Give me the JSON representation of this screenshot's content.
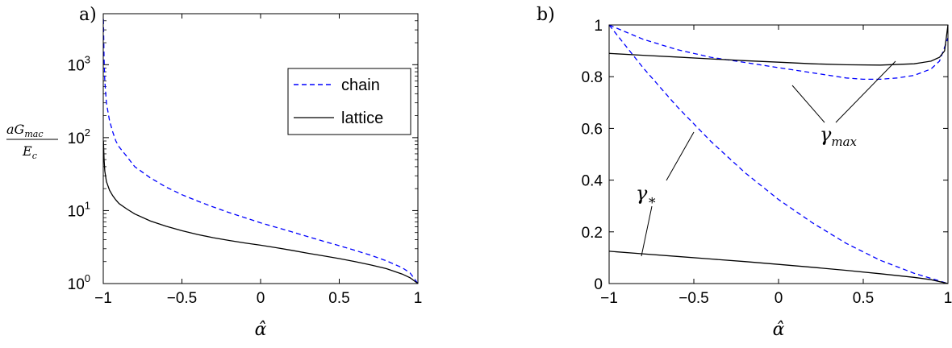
{
  "chart_data": [
    {
      "type": "line",
      "panel_label": "a)",
      "xlabel": "α̂",
      "ylabel_num": "aG",
      "ylabel_num_sub": "mac",
      "ylabel_den": "E",
      "ylabel_den_sub": "c",
      "xlim": [
        -1,
        1
      ],
      "ylim": [
        1,
        5000
      ],
      "yscale": "log",
      "x_ticks": [
        "−1",
        "−0.5",
        "0",
        "0.5",
        "1"
      ],
      "y_ticks": [
        {
          "base": "10",
          "exp": "0"
        },
        {
          "base": "10",
          "exp": "1"
        },
        {
          "base": "10",
          "exp": "2"
        },
        {
          "base": "10",
          "exp": "3"
        }
      ],
      "legend_position": "upper-right",
      "series": [
        {
          "name": "chain",
          "color": "#0000ff",
          "dash": "dashed",
          "x": [
            -0.999,
            -0.995,
            -0.99,
            -0.98,
            -0.96,
            -0.94,
            -0.92,
            -0.9,
            -0.85,
            -0.8,
            -0.7,
            -0.6,
            -0.5,
            -0.4,
            -0.3,
            -0.2,
            -0.1,
            0.0,
            0.1,
            0.2,
            0.3,
            0.4,
            0.5,
            0.6,
            0.7,
            0.8,
            0.9,
            0.95,
            1.0
          ],
          "y": [
            4200,
            1200,
            600,
            300,
            170,
            120,
            90,
            75,
            55,
            40,
            28,
            21,
            16.5,
            13.5,
            11.2,
            9.4,
            8.0,
            6.8,
            5.9,
            5.1,
            4.4,
            3.8,
            3.3,
            2.85,
            2.45,
            2.05,
            1.65,
            1.4,
            1.0
          ]
        },
        {
          "name": "lattice",
          "color": "#000000",
          "dash": "solid",
          "x": [
            -0.999,
            -0.995,
            -0.99,
            -0.98,
            -0.96,
            -0.94,
            -0.92,
            -0.9,
            -0.85,
            -0.8,
            -0.7,
            -0.6,
            -0.5,
            -0.4,
            -0.3,
            -0.2,
            -0.1,
            0.0,
            0.1,
            0.2,
            0.3,
            0.4,
            0.5,
            0.6,
            0.7,
            0.8,
            0.9,
            0.95,
            1.0
          ],
          "y": [
            90,
            50,
            35,
            25,
            19,
            16,
            14,
            12.5,
            10.5,
            9.0,
            7.2,
            6.1,
            5.3,
            4.7,
            4.25,
            3.9,
            3.6,
            3.35,
            3.1,
            2.85,
            2.6,
            2.4,
            2.2,
            2.0,
            1.8,
            1.6,
            1.35,
            1.2,
            1.0
          ]
        }
      ]
    },
    {
      "type": "line",
      "panel_label": "b)",
      "xlabel": "α̂",
      "xlim": [
        -1,
        1
      ],
      "ylim": [
        0,
        1
      ],
      "x_ticks": [
        "−1",
        "−0.5",
        "0",
        "0.5",
        "1"
      ],
      "y_ticks": [
        "0",
        "0.2",
        "0.4",
        "0.6",
        "0.8",
        "1"
      ],
      "annotations": [
        {
          "text": "γ",
          "sub": "max",
          "x": 0.6,
          "y": 0.69
        },
        {
          "text": "γ",
          "sub": "∗",
          "x": -0.6,
          "y": 0.4
        }
      ],
      "series": [
        {
          "name": "chain γmax",
          "color": "#0000ff",
          "dash": "dashed",
          "x": [
            -1.0,
            -0.8,
            -0.6,
            -0.4,
            -0.2,
            0.0,
            0.2,
            0.4,
            0.5,
            0.6,
            0.7,
            0.8,
            0.9,
            0.95,
            1.0
          ],
          "y": [
            1.0,
            0.945,
            0.905,
            0.875,
            0.855,
            0.835,
            0.815,
            0.795,
            0.79,
            0.79,
            0.795,
            0.805,
            0.83,
            0.86,
            0.95
          ]
        },
        {
          "name": "lattice γmax",
          "color": "#000000",
          "dash": "solid",
          "x": [
            -1.0,
            -0.8,
            -0.6,
            -0.4,
            -0.2,
            0.0,
            0.2,
            0.4,
            0.6,
            0.8,
            0.9,
            0.95,
            0.98,
            1.0
          ],
          "y": [
            0.89,
            0.883,
            0.876,
            0.869,
            0.862,
            0.856,
            0.85,
            0.846,
            0.845,
            0.85,
            0.86,
            0.875,
            0.9,
            1.0
          ]
        },
        {
          "name": "chain γ*",
          "color": "#0000ff",
          "dash": "dashed",
          "x": [
            -1.0,
            -0.8,
            -0.6,
            -0.4,
            -0.2,
            0.0,
            0.2,
            0.4,
            0.6,
            0.8,
            1.0
          ],
          "y": [
            1.0,
            0.835,
            0.685,
            0.55,
            0.43,
            0.325,
            0.235,
            0.155,
            0.09,
            0.04,
            0.0
          ]
        },
        {
          "name": "lattice γ*",
          "color": "#000000",
          "dash": "solid",
          "x": [
            -1.0,
            -0.8,
            -0.6,
            -0.4,
            -0.2,
            0.0,
            0.2,
            0.4,
            0.6,
            0.8,
            0.9,
            1.0
          ],
          "y": [
            0.125,
            0.115,
            0.105,
            0.095,
            0.085,
            0.074,
            0.063,
            0.051,
            0.038,
            0.024,
            0.015,
            0.0
          ]
        }
      ]
    }
  ]
}
